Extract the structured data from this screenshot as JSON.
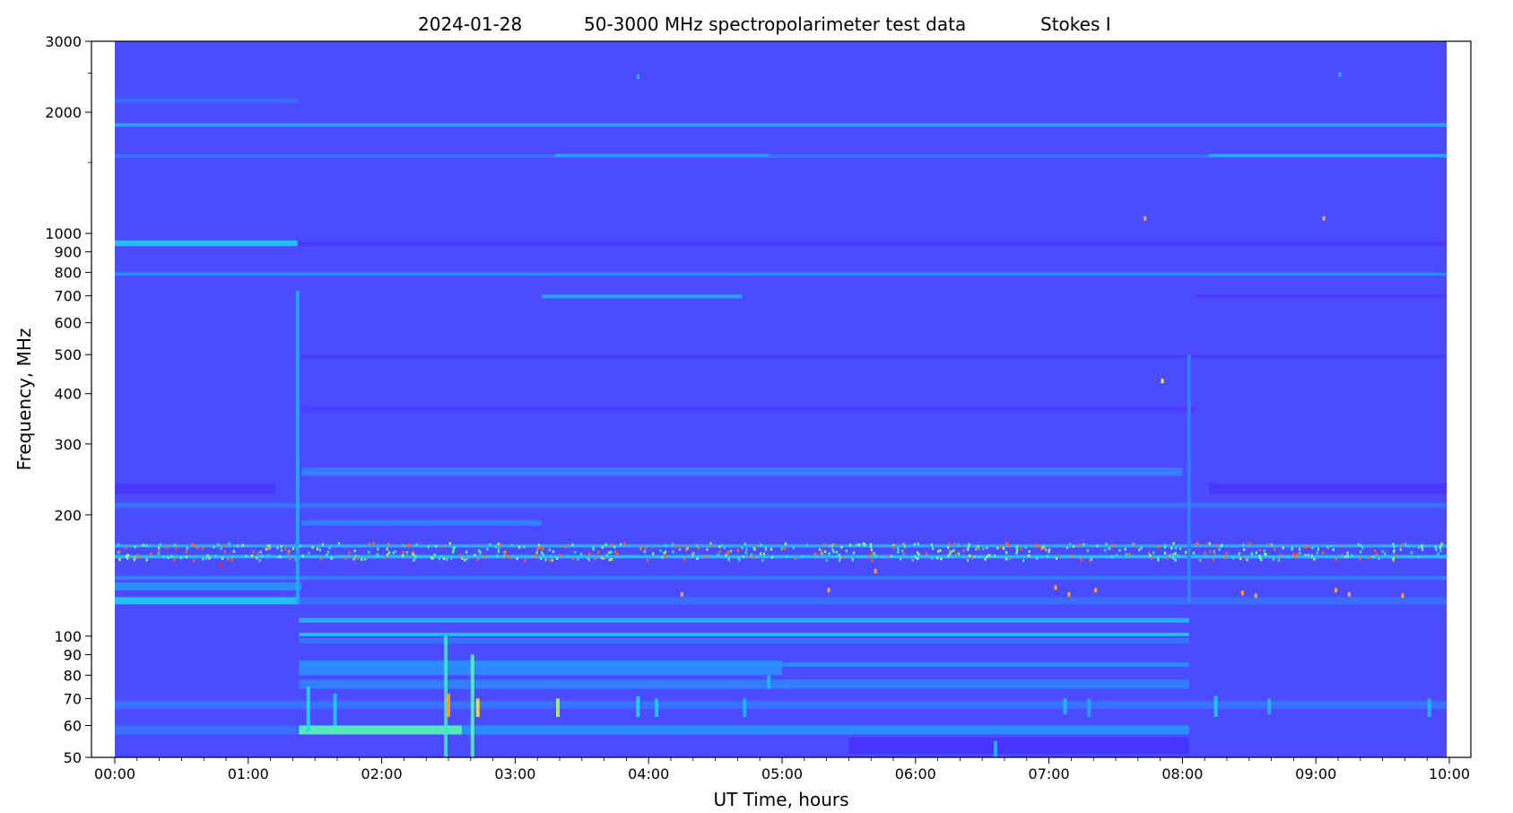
{
  "chart_data": {
    "type": "heatmap",
    "title": {
      "date": "2024-01-28",
      "main": "50-3000 MHz spectropolarimeter test data",
      "stokes": "Stokes I"
    },
    "xlabel": "UT Time, hours",
    "ylabel": "Frequency, MHz",
    "x_scale": "linear",
    "y_scale": "log",
    "xlim_hours": [
      0,
      10
    ],
    "ylim_mhz": [
      50,
      3000
    ],
    "x_ticks": [
      {
        "value": 0,
        "label": "00:00"
      },
      {
        "value": 1,
        "label": "01:00"
      },
      {
        "value": 2,
        "label": "02:00"
      },
      {
        "value": 3,
        "label": "03:00"
      },
      {
        "value": 4,
        "label": "04:00"
      },
      {
        "value": 5,
        "label": "05:00"
      },
      {
        "value": 6,
        "label": "06:00"
      },
      {
        "value": 7,
        "label": "07:00"
      },
      {
        "value": 8,
        "label": "08:00"
      },
      {
        "value": 9,
        "label": "09:00"
      },
      {
        "value": 10,
        "label": "10:00"
      }
    ],
    "y_ticks": [
      {
        "value": 50,
        "label": "50"
      },
      {
        "value": 60,
        "label": "60"
      },
      {
        "value": 70,
        "label": "70"
      },
      {
        "value": 80,
        "label": "80"
      },
      {
        "value": 90,
        "label": "90"
      },
      {
        "value": 100,
        "label": "100"
      },
      {
        "value": 200,
        "label": "200"
      },
      {
        "value": 300,
        "label": "300"
      },
      {
        "value": 400,
        "label": "400"
      },
      {
        "value": 500,
        "label": "500"
      },
      {
        "value": 600,
        "label": "600"
      },
      {
        "value": 700,
        "label": "700"
      },
      {
        "value": 800,
        "label": "800"
      },
      {
        "value": 900,
        "label": "900"
      },
      {
        "value": 1000,
        "label": "1000"
      },
      {
        "value": 2000,
        "label": "2000"
      },
      {
        "value": 3000,
        "label": "3000"
      }
    ],
    "y_minor_ticks": [
      1500,
      2500
    ],
    "colormap": {
      "low": "#4b4bff",
      "mid": "#20c8ff",
      "high": "#ff2020"
    },
    "data_time_range_hours": [
      0,
      9.98
    ],
    "background_level": 0.2,
    "bands": [
      {
        "f_lo": 2110,
        "f_hi": 2160,
        "t0": 0,
        "t1": 1.37,
        "level": 0.3
      },
      {
        "f_lo": 1840,
        "f_hi": 1880,
        "t0": 0,
        "t1": 9.98,
        "level": 0.45
      },
      {
        "f_lo": 1540,
        "f_hi": 1570,
        "t0": 0,
        "t1": 9.98,
        "level": 0.32
      },
      {
        "f_lo": 1550,
        "f_hi": 1575,
        "t0": 8.2,
        "t1": 9.98,
        "level": 0.5
      },
      {
        "f_lo": 1550,
        "f_hi": 1575,
        "t0": 3.3,
        "t1": 4.9,
        "level": 0.45
      },
      {
        "f_lo": 930,
        "f_hi": 960,
        "t0": 0,
        "t1": 1.37,
        "level": 0.55
      },
      {
        "f_lo": 930,
        "f_hi": 955,
        "t0": 1.37,
        "t1": 9.98,
        "level": 0.1
      },
      {
        "f_lo": 785,
        "f_hi": 800,
        "t0": 0,
        "t1": 9.98,
        "level": 0.38
      },
      {
        "f_lo": 690,
        "f_hi": 705,
        "t0": 3.2,
        "t1": 4.7,
        "level": 0.45
      },
      {
        "f_lo": 690,
        "f_hi": 705,
        "t0": 8.1,
        "t1": 9.98,
        "level": 0.1
      },
      {
        "f_lo": 490,
        "f_hi": 500,
        "t0": 1.4,
        "t1": 9.98,
        "level": 0.12
      },
      {
        "f_lo": 360,
        "f_hi": 370,
        "t0": 1.4,
        "t1": 8.1,
        "level": 0.12
      },
      {
        "f_lo": 250,
        "f_hi": 262,
        "t0": 1.4,
        "t1": 8.0,
        "level": 0.35
      },
      {
        "f_lo": 225,
        "f_hi": 240,
        "t0": 0,
        "t1": 1.2,
        "level": 0.08
      },
      {
        "f_lo": 225,
        "f_hi": 240,
        "t0": 8.2,
        "t1": 9.98,
        "level": 0.08
      },
      {
        "f_lo": 208,
        "f_hi": 214,
        "t0": 0,
        "t1": 9.98,
        "level": 0.32
      },
      {
        "f_lo": 188,
        "f_hi": 194,
        "t0": 1.4,
        "t1": 3.2,
        "level": 0.35
      },
      {
        "f_lo": 166,
        "f_hi": 169,
        "t0": 0,
        "t1": 9.98,
        "level": 0.5
      },
      {
        "f_lo": 156,
        "f_hi": 159,
        "t0": 0,
        "t1": 9.98,
        "level": 0.55
      },
      {
        "f_lo": 138,
        "f_hi": 141,
        "t0": 0,
        "t1": 9.98,
        "level": 0.35
      },
      {
        "f_lo": 130,
        "f_hi": 136,
        "t0": 0,
        "t1": 1.4,
        "level": 0.4
      },
      {
        "f_lo": 120,
        "f_hi": 125,
        "t0": 0,
        "t1": 1.38,
        "level": 0.55
      },
      {
        "f_lo": 120,
        "f_hi": 125,
        "t0": 1.38,
        "t1": 9.98,
        "level": 0.3
      },
      {
        "f_lo": 108,
        "f_hi": 111,
        "t0": 1.38,
        "t1": 8.05,
        "level": 0.5
      },
      {
        "f_lo": 100,
        "f_hi": 102,
        "t0": 1.38,
        "t1": 8.05,
        "level": 0.55
      },
      {
        "f_lo": 96,
        "f_hi": 99,
        "t0": 1.38,
        "t1": 8.05,
        "level": 0.32
      },
      {
        "f_lo": 84,
        "f_hi": 86,
        "t0": 1.38,
        "t1": 8.05,
        "level": 0.4
      },
      {
        "f_lo": 80,
        "f_hi": 87,
        "t0": 1.38,
        "t1": 5.0,
        "level": 0.38
      },
      {
        "f_lo": 74,
        "f_hi": 78,
        "t0": 1.38,
        "t1": 8.05,
        "level": 0.35
      },
      {
        "f_lo": 66,
        "f_hi": 69,
        "t0": 0,
        "t1": 9.98,
        "level": 0.32
      },
      {
        "f_lo": 57,
        "f_hi": 60,
        "t0": 1.38,
        "t1": 8.05,
        "level": 0.4
      },
      {
        "f_lo": 57,
        "f_hi": 60,
        "t0": 0,
        "t1": 1.38,
        "level": 0.3
      },
      {
        "f_lo": 57,
        "f_hi": 60,
        "t0": 1.38,
        "t1": 2.6,
        "level": 0.7
      },
      {
        "f_lo": 51,
        "f_hi": 56,
        "t0": 5.5,
        "t1": 8.05,
        "level": 0.05
      }
    ],
    "vertical_streaks": [
      {
        "t": 1.37,
        "f_lo": 120,
        "f_hi": 720,
        "level": 0.45
      },
      {
        "t": 1.45,
        "f_lo": 58,
        "f_hi": 75,
        "level": 0.6
      },
      {
        "t": 1.65,
        "f_lo": 60,
        "f_hi": 72,
        "level": 0.55
      },
      {
        "t": 2.48,
        "f_lo": 50,
        "f_hi": 100,
        "level": 0.65
      },
      {
        "t": 2.5,
        "f_lo": 63,
        "f_hi": 72,
        "level": 0.9
      },
      {
        "t": 2.68,
        "f_lo": 50,
        "f_hi": 90,
        "level": 0.7
      },
      {
        "t": 2.72,
        "f_lo": 63,
        "f_hi": 70,
        "level": 0.85
      },
      {
        "t": 3.32,
        "f_lo": 63,
        "f_hi": 70,
        "level": 0.8
      },
      {
        "t": 3.92,
        "f_lo": 63,
        "f_hi": 71,
        "level": 0.6
      },
      {
        "t": 4.06,
        "f_lo": 63,
        "f_hi": 70,
        "level": 0.55
      },
      {
        "t": 4.72,
        "f_lo": 63,
        "f_hi": 70,
        "level": 0.5
      },
      {
        "t": 4.9,
        "f_lo": 74,
        "f_hi": 80,
        "level": 0.5
      },
      {
        "t": 7.12,
        "f_lo": 64,
        "f_hi": 70,
        "level": 0.5
      },
      {
        "t": 7.3,
        "f_lo": 63,
        "f_hi": 70,
        "level": 0.45
      },
      {
        "t": 8.05,
        "f_lo": 120,
        "f_hi": 500,
        "level": 0.35
      },
      {
        "t": 8.25,
        "f_lo": 63,
        "f_hi": 71,
        "level": 0.55
      },
      {
        "t": 8.65,
        "f_lo": 64,
        "f_hi": 70,
        "level": 0.5
      },
      {
        "t": 9.85,
        "f_lo": 63,
        "f_hi": 70,
        "level": 0.5
      },
      {
        "t": 6.6,
        "f_lo": 50,
        "f_hi": 55,
        "level": 0.5
      }
    ],
    "rfi_band": {
      "f_lo": 154,
      "f_hi": 170,
      "t0": 0,
      "t1": 9.98,
      "dots_per_hour": 60,
      "hot_fraction": 0.3
    },
    "isolated_spots": [
      {
        "t": 0.8,
        "f": 150,
        "level": 1.0
      },
      {
        "t": 3.92,
        "f": 2450,
        "level": 0.5
      },
      {
        "t": 9.18,
        "f": 2480,
        "level": 0.5
      },
      {
        "t": 7.72,
        "f": 1090,
        "level": 0.9
      },
      {
        "t": 9.06,
        "f": 1090,
        "level": 0.9
      },
      {
        "t": 4.25,
        "f": 127,
        "level": 0.9
      },
      {
        "t": 5.35,
        "f": 130,
        "level": 0.9
      },
      {
        "t": 7.05,
        "f": 132,
        "level": 0.9
      },
      {
        "t": 7.15,
        "f": 127,
        "level": 0.9
      },
      {
        "t": 7.35,
        "f": 130,
        "level": 0.9
      },
      {
        "t": 8.45,
        "f": 128,
        "level": 0.9
      },
      {
        "t": 8.55,
        "f": 126,
        "level": 0.9
      },
      {
        "t": 9.15,
        "f": 130,
        "level": 0.9
      },
      {
        "t": 9.25,
        "f": 127,
        "level": 0.9
      },
      {
        "t": 9.65,
        "f": 126,
        "level": 0.9
      },
      {
        "t": 7.85,
        "f": 430,
        "level": 0.85
      },
      {
        "t": 5.7,
        "f": 145,
        "level": 0.9
      }
    ]
  }
}
